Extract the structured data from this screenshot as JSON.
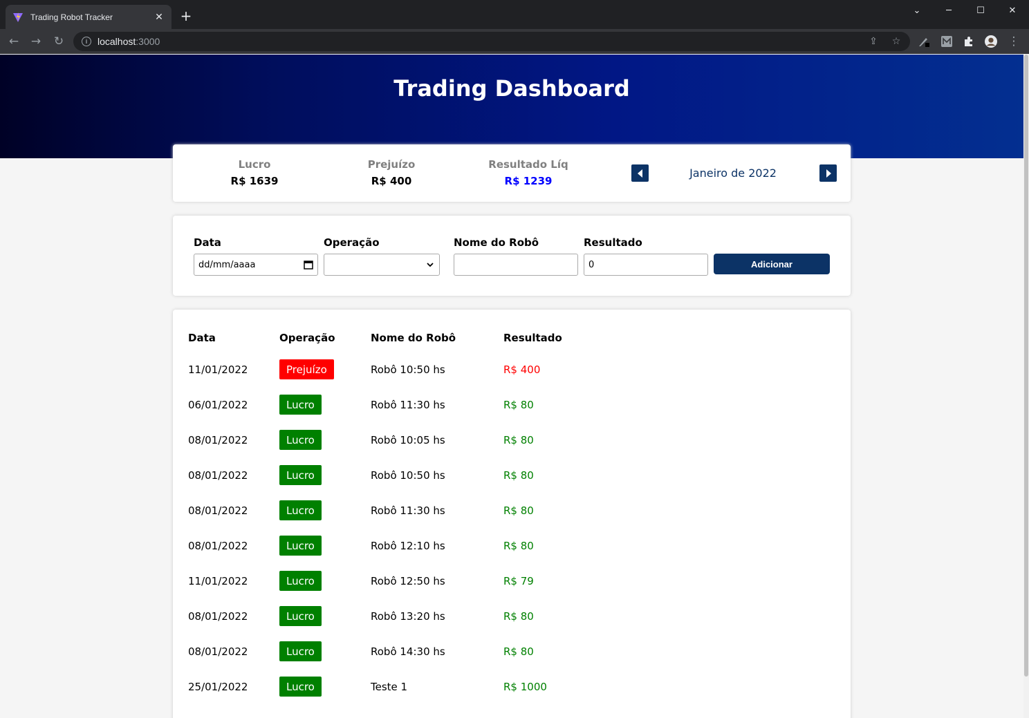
{
  "browser": {
    "tab_title": "Trading Robot Tracker",
    "url_host": "localhost",
    "url_port": ":3000"
  },
  "header": {
    "title": "Trading Dashboard"
  },
  "summary": {
    "profit_label": "Lucro",
    "profit_value": "R$ 1639",
    "loss_label": "Prejuízo",
    "loss_value": "R$ 400",
    "net_label": "Resultado Líq",
    "net_value": "R$ 1239",
    "month_label": "Janeiro de 2022",
    "accent_color": "#0c3366"
  },
  "form": {
    "date_label": "Data",
    "date_placeholder": "dd/mm/aaaa",
    "operation_label": "Operação",
    "operation_value": "",
    "robot_label": "Nome do Robô",
    "robot_value": "",
    "result_label": "Resultado",
    "result_value": "0",
    "add_button": "Adicionar"
  },
  "table": {
    "headers": [
      "Data",
      "Operação",
      "Nome do Robô",
      "Resultado"
    ],
    "rows": [
      {
        "date": "11/01/2022",
        "operation": "Prejuízo",
        "robot": "Robô 10:50 hs",
        "result": "R$ 400",
        "status": "red"
      },
      {
        "date": "06/01/2022",
        "operation": "Lucro",
        "robot": "Robô 11:30 hs",
        "result": "R$ 80",
        "status": "green"
      },
      {
        "date": "08/01/2022",
        "operation": "Lucro",
        "robot": "Robô 10:05 hs",
        "result": "R$ 80",
        "status": "green"
      },
      {
        "date": "08/01/2022",
        "operation": "Lucro",
        "robot": "Robô 10:50 hs",
        "result": "R$ 80",
        "status": "green"
      },
      {
        "date": "08/01/2022",
        "operation": "Lucro",
        "robot": "Robô 11:30 hs",
        "result": "R$ 80",
        "status": "green"
      },
      {
        "date": "08/01/2022",
        "operation": "Lucro",
        "robot": "Robô 12:10 hs",
        "result": "R$ 80",
        "status": "green"
      },
      {
        "date": "11/01/2022",
        "operation": "Lucro",
        "robot": "Robô 12:50 hs",
        "result": "R$ 79",
        "status": "green"
      },
      {
        "date": "08/01/2022",
        "operation": "Lucro",
        "robot": "Robô 13:20 hs",
        "result": "R$ 80",
        "status": "green"
      },
      {
        "date": "08/01/2022",
        "operation": "Lucro",
        "robot": "Robô 14:30 hs",
        "result": "R$ 80",
        "status": "green"
      },
      {
        "date": "25/01/2022",
        "operation": "Lucro",
        "robot": "Teste 1",
        "result": "R$ 1000",
        "status": "green"
      }
    ]
  }
}
